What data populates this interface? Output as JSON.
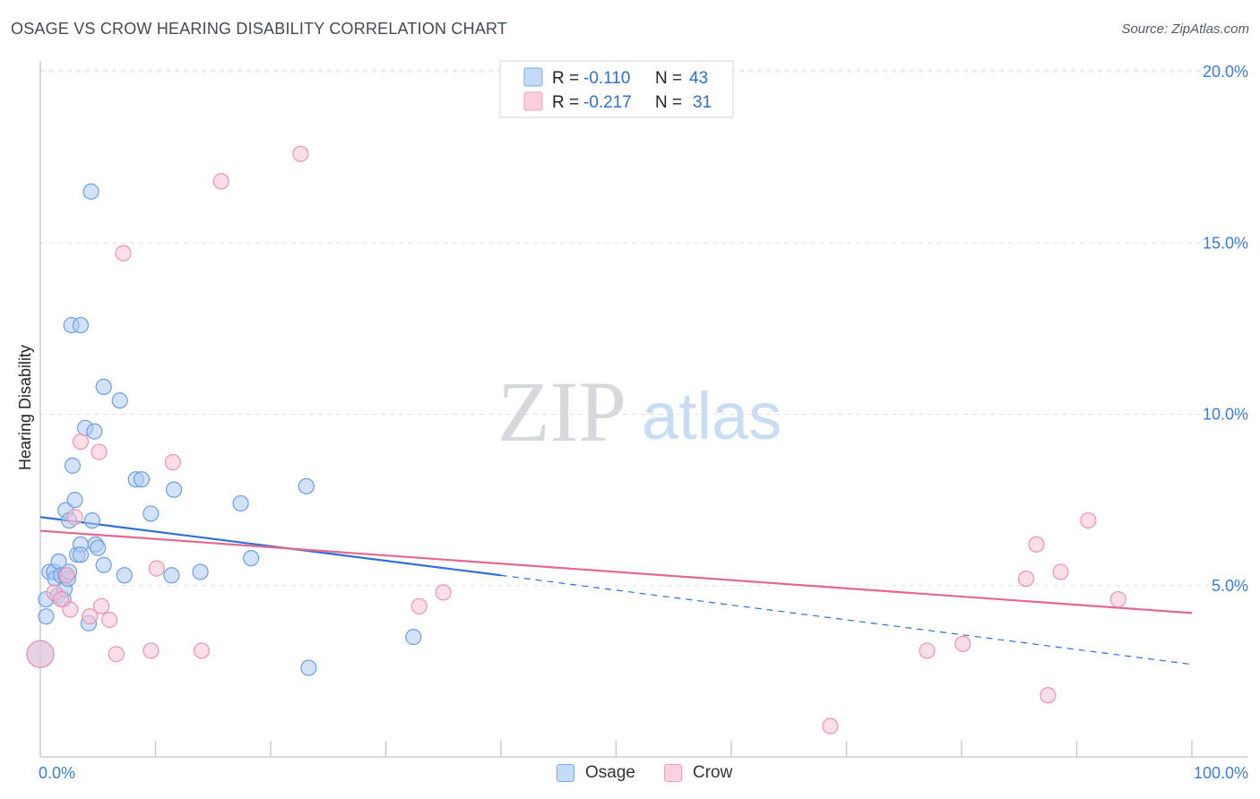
{
  "title": "OSAGE VS CROW HEARING DISABILITY CORRELATION CHART",
  "source": "Source: ZipAtlas.com",
  "watermark": {
    "zip": "ZIP",
    "atlas": "atlas"
  },
  "colors": {
    "osage_fill": "#aecbf3",
    "osage_stroke": "#6a9ee6",
    "osage_line": "#2e6fd8",
    "crow_fill": "#f8c3d4",
    "crow_stroke": "#ee92b2",
    "crow_line": "#e2688f"
  },
  "legend": {
    "rows": [
      {
        "r_label": "R =",
        "r_value": "-0.110",
        "n_label": "N =",
        "n_value": "43"
      },
      {
        "r_label": "R =",
        "r_value": "-0.217",
        "n_label": "N =",
        "n_value": "31"
      }
    ]
  },
  "bottom_legend": {
    "osage": "Osage",
    "crow": "Crow"
  },
  "chart_data": {
    "type": "scatter",
    "title": "OSAGE VS CROW HEARING DISABILITY CORRELATION CHART",
    "xlabel": "",
    "ylabel": "Hearing Disability",
    "xlim": [
      0,
      100
    ],
    "ylim": [
      0,
      21
    ],
    "x_tick_labels": [
      "0.0%",
      "100.0%"
    ],
    "y_ticks": [
      5,
      10,
      15,
      20
    ],
    "y_tick_labels": [
      "5.0%",
      "10.0%",
      "15.0%",
      "20.0%"
    ],
    "grid": true,
    "series": [
      {
        "name": "Osage",
        "R": -0.11,
        "N": 43,
        "trend": {
          "x_start": 0,
          "y_start": 7.0,
          "x_solid_end": 40,
          "y_solid_end": 5.3,
          "x_end": 100,
          "y_end": 2.7
        },
        "points": [
          {
            "x": 0.0,
            "y": 3.0,
            "big": true
          },
          {
            "x": 0.5,
            "y": 4.1
          },
          {
            "x": 0.5,
            "y": 4.6
          },
          {
            "x": 0.8,
            "y": 5.4
          },
          {
            "x": 1.2,
            "y": 5.4
          },
          {
            "x": 1.3,
            "y": 5.2
          },
          {
            "x": 1.5,
            "y": 4.7
          },
          {
            "x": 1.6,
            "y": 5.7
          },
          {
            "x": 1.8,
            "y": 5.3
          },
          {
            "x": 2.0,
            "y": 4.6
          },
          {
            "x": 2.1,
            "y": 4.9
          },
          {
            "x": 2.2,
            "y": 7.2
          },
          {
            "x": 2.2,
            "y": 5.3
          },
          {
            "x": 2.4,
            "y": 5.2
          },
          {
            "x": 2.5,
            "y": 5.4
          },
          {
            "x": 2.5,
            "y": 6.9
          },
          {
            "x": 2.7,
            "y": 12.6
          },
          {
            "x": 2.8,
            "y": 8.5
          },
          {
            "x": 3.0,
            "y": 7.5
          },
          {
            "x": 3.2,
            "y": 5.9
          },
          {
            "x": 3.5,
            "y": 12.6
          },
          {
            "x": 3.5,
            "y": 6.2
          },
          {
            "x": 3.5,
            "y": 5.9
          },
          {
            "x": 3.9,
            "y": 9.6
          },
          {
            "x": 4.2,
            "y": 3.9
          },
          {
            "x": 4.4,
            "y": 16.5
          },
          {
            "x": 4.5,
            "y": 6.9
          },
          {
            "x": 4.7,
            "y": 9.5
          },
          {
            "x": 4.8,
            "y": 6.2
          },
          {
            "x": 5.0,
            "y": 6.1
          },
          {
            "x": 5.5,
            "y": 5.6
          },
          {
            "x": 5.5,
            "y": 10.8
          },
          {
            "x": 6.9,
            "y": 10.4
          },
          {
            "x": 7.3,
            "y": 5.3
          },
          {
            "x": 8.3,
            "y": 8.1
          },
          {
            "x": 8.8,
            "y": 8.1
          },
          {
            "x": 9.6,
            "y": 7.1
          },
          {
            "x": 11.4,
            "y": 5.3
          },
          {
            "x": 11.6,
            "y": 7.8
          },
          {
            "x": 13.9,
            "y": 5.4
          },
          {
            "x": 17.4,
            "y": 7.4
          },
          {
            "x": 18.3,
            "y": 5.8
          },
          {
            "x": 23.1,
            "y": 7.9
          },
          {
            "x": 23.3,
            "y": 2.6
          },
          {
            "x": 32.4,
            "y": 3.5
          }
        ]
      },
      {
        "name": "Crow",
        "R": -0.217,
        "N": 31,
        "trend": {
          "x_start": 0,
          "y_start": 6.6,
          "x_end": 100,
          "y_end": 4.2
        },
        "points": [
          {
            "x": 0.0,
            "y": 3.0,
            "big": true
          },
          {
            "x": 1.2,
            "y": 4.8
          },
          {
            "x": 1.8,
            "y": 4.6
          },
          {
            "x": 2.3,
            "y": 5.3
          },
          {
            "x": 2.6,
            "y": 4.3
          },
          {
            "x": 3.0,
            "y": 7.0
          },
          {
            "x": 3.5,
            "y": 9.2
          },
          {
            "x": 4.3,
            "y": 4.1
          },
          {
            "x": 5.1,
            "y": 8.9
          },
          {
            "x": 5.3,
            "y": 4.4
          },
          {
            "x": 6.0,
            "y": 4.0
          },
          {
            "x": 6.6,
            "y": 3.0
          },
          {
            "x": 7.2,
            "y": 14.7
          },
          {
            "x": 9.6,
            "y": 3.1
          },
          {
            "x": 10.1,
            "y": 5.5
          },
          {
            "x": 11.5,
            "y": 8.6
          },
          {
            "x": 14.0,
            "y": 3.1
          },
          {
            "x": 15.7,
            "y": 16.8
          },
          {
            "x": 22.6,
            "y": 17.6
          },
          {
            "x": 32.9,
            "y": 4.4
          },
          {
            "x": 35.0,
            "y": 4.8
          },
          {
            "x": 68.6,
            "y": 0.9
          },
          {
            "x": 77.0,
            "y": 3.1
          },
          {
            "x": 80.1,
            "y": 3.3
          },
          {
            "x": 85.6,
            "y": 5.2
          },
          {
            "x": 86.5,
            "y": 6.2
          },
          {
            "x": 87.5,
            "y": 1.8
          },
          {
            "x": 88.6,
            "y": 5.4
          },
          {
            "x": 91.0,
            "y": 6.9
          },
          {
            "x": 93.6,
            "y": 4.6
          }
        ]
      }
    ]
  }
}
